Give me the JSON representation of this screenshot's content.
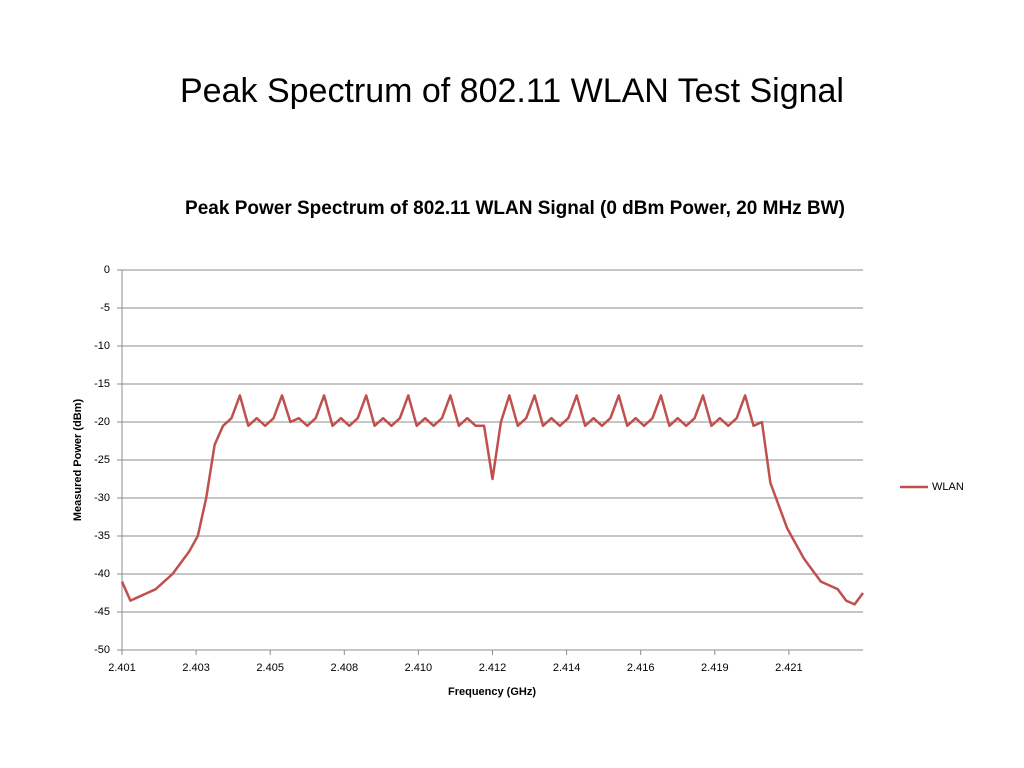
{
  "slide_title": "Peak Spectrum of 802.11 WLAN Test Signal",
  "chart_data": {
    "type": "line",
    "title": "Peak Power Spectrum of 802.11 WLAN Signal (0 dBm Power, 20 MHz BW)",
    "x_label": "Frequency (GHz)",
    "y_label": "Measured Power (dBm)",
    "x": [
      2.401,
      2.40125,
      2.4015,
      2.40175,
      2.402,
      2.40225,
      2.4025,
      2.40275,
      2.403,
      2.40325,
      2.4035,
      2.40375,
      2.404,
      2.40425,
      2.4045,
      2.40475,
      2.405,
      2.40525,
      2.4055,
      2.40575,
      2.406,
      2.40625,
      2.4065,
      2.40675,
      2.407,
      2.40725,
      2.4075,
      2.40775,
      2.408,
      2.40825,
      2.4085,
      2.40875,
      2.409,
      2.40925,
      2.4095,
      2.40975,
      2.41,
      2.41025,
      2.4105,
      2.41075,
      2.411,
      2.41125,
      2.4115,
      2.41175,
      2.412,
      2.41225,
      2.4125,
      2.41275,
      2.413,
      2.41325,
      2.4135,
      2.41375,
      2.414,
      2.41425,
      2.4145,
      2.41475,
      2.415,
      2.41525,
      2.4155,
      2.41575,
      2.416,
      2.41625,
      2.4165,
      2.41675,
      2.417,
      2.41725,
      2.4175,
      2.41775,
      2.418,
      2.41825,
      2.4185,
      2.41875,
      2.419,
      2.41925,
      2.4195,
      2.41975,
      2.42,
      2.42025,
      2.4205,
      2.42075,
      2.421,
      2.42125,
      2.4215,
      2.42175,
      2.422,
      2.42225,
      2.4225,
      2.42275,
      2.423
    ],
    "series": [
      {
        "name": "WLAN",
        "color": "#c0504d",
        "values": [
          -41,
          -43.5,
          -43,
          -42.5,
          -42,
          -41,
          -40,
          -38.5,
          -37,
          -35,
          -30,
          -23,
          -20.5,
          -19.5,
          -16.5,
          -20.5,
          -19.5,
          -20.5,
          -19.5,
          -16.5,
          -20,
          -19.5,
          -20.5,
          -19.5,
          -16.5,
          -20.5,
          -19.5,
          -20.5,
          -19.5,
          -16.5,
          -20.5,
          -19.5,
          -20.5,
          -19.5,
          -16.5,
          -20.5,
          -19.5,
          -20.5,
          -19.5,
          -16.5,
          -20.5,
          -19.5,
          -20.5,
          -20.5,
          -27.5,
          -20,
          -16.5,
          -20.5,
          -19.5,
          -16.5,
          -20.5,
          -19.5,
          -20.5,
          -19.5,
          -16.5,
          -20.5,
          -19.5,
          -20.5,
          -19.5,
          -16.5,
          -20.5,
          -19.5,
          -20.5,
          -19.5,
          -16.5,
          -20.5,
          -19.5,
          -20.5,
          -19.5,
          -16.5,
          -20.5,
          -19.5,
          -20.5,
          -19.5,
          -16.5,
          -20.5,
          -20,
          -28,
          -31,
          -34,
          -36,
          -38,
          -39.5,
          -41,
          -41.5,
          -42,
          -43.5,
          -44,
          -42.5
        ]
      }
    ],
    "xlim": [
      2.401,
      2.423
    ],
    "xticks": [
      2.401,
      {
        "value": 2.4032,
        "label": "2.403"
      },
      {
        "value": 2.4054,
        "label": "2.405"
      },
      {
        "value": 2.4076,
        "label": "2.408"
      },
      {
        "value": 2.4098,
        "label": "2.410"
      },
      2.412,
      {
        "value": 2.4142,
        "label": "2.414"
      },
      {
        "value": 2.4164,
        "label": "2.416"
      },
      {
        "value": 2.4186,
        "label": "2.419"
      },
      {
        "value": 2.4208,
        "label": "2.421"
      }
    ],
    "ylim": [
      -50,
      0
    ],
    "yticks": [
      0,
      -5,
      -10,
      -15,
      -20,
      -25,
      -30,
      -35,
      -40,
      -45,
      -50
    ],
    "grid": true,
    "legend": "right"
  }
}
